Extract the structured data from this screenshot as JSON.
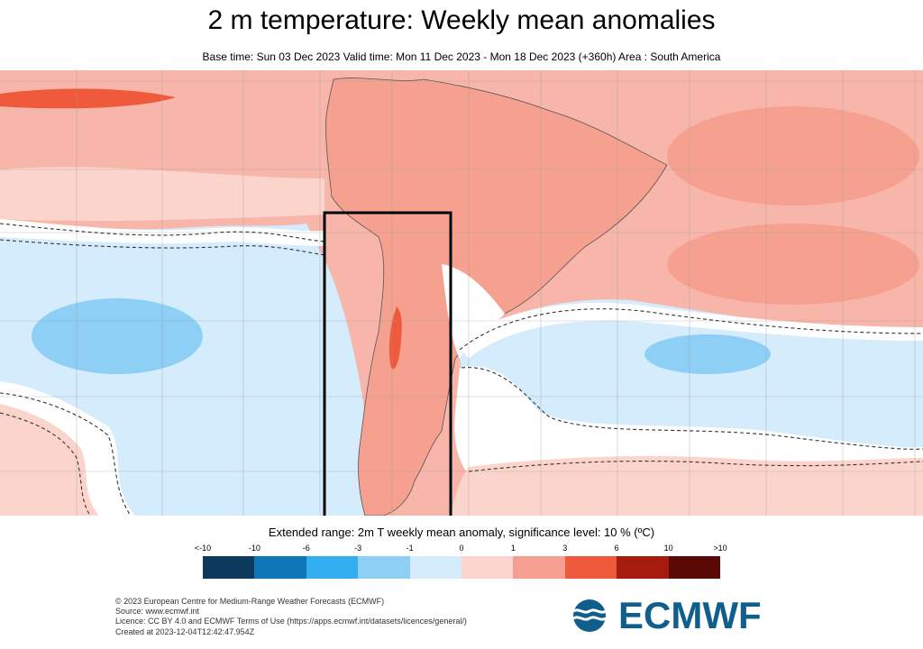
{
  "header": {
    "title": "2 m temperature: Weekly mean anomalies",
    "subtitle": "Base time: Sun 03 Dec 2023 Valid time: Mon 11 Dec 2023 - Mon 18 Dec 2023 (+360h) Area : South America"
  },
  "legend": {
    "title": "Extended range: 2m T weekly mean anomaly, significance level: 10 % (ºC)",
    "tick_labels": [
      "<-10",
      "-10",
      "-6",
      "-3",
      "-1",
      "0",
      "1",
      "3",
      "6",
      "10",
      ">10"
    ],
    "colors": [
      "#0b3a5c",
      "#0f77b8",
      "#33aef0",
      "#8dcff5",
      "#d4ecfb",
      "#fdd6d0",
      "#f7a091",
      "#f05a3c",
      "#a51b0d",
      "#5a0a05"
    ]
  },
  "map": {
    "colors": {
      "sea_warm": "#f7b6a9",
      "pale_warm": "#fbd4cc",
      "warm": "#f6a190",
      "hot": "#f05a3c",
      "cool": "#d4ecfb",
      "cold": "#8dcff5",
      "neutral": "#ffffff",
      "box": "#000000"
    }
  },
  "footer": {
    "lines": [
      "© 2023 European Centre for Medium-Range Weather Forecasts (ECMWF)",
      "Source: www.ecmwf.int",
      "Licence: CC BY 4.0 and ECMWF Terms of Use (https://apps.ecmwf.int/datasets/licences/general/)",
      "Created at 2023-12-04T12:42:47.954Z"
    ],
    "logo_text": "ECMWF"
  }
}
